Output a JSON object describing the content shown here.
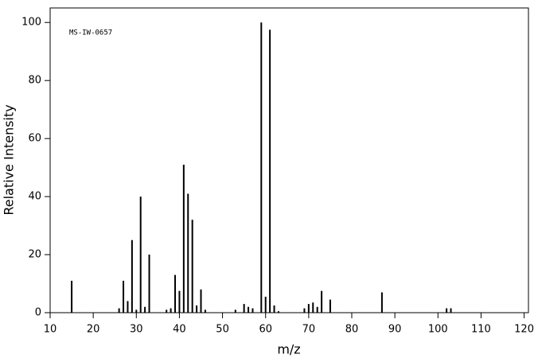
{
  "chart_data": {
    "type": "stem",
    "annotation": "MS-IW-0657",
    "xlabel": "m/z",
    "ylabel": "Relative Intensity",
    "color": "#000000",
    "x": [
      15,
      26,
      27,
      28,
      29,
      30,
      31,
      32,
      33,
      37,
      38,
      39,
      40,
      41,
      42,
      43,
      44,
      45,
      46,
      53,
      55,
      56,
      57,
      59,
      60,
      61,
      62,
      63,
      69,
      70,
      71,
      72,
      73,
      75,
      87,
      102,
      103
    ],
    "values": [
      11,
      1.5,
      11,
      4,
      25,
      1,
      40,
      2,
      20,
      1,
      1.5,
      13,
      7.5,
      51,
      41,
      32,
      2.5,
      8,
      1,
      1,
      3,
      2,
      1.5,
      100,
      5.5,
      97.5,
      2.5,
      0.5,
      1.5,
      3,
      3.5,
      2,
      7.5,
      4.5,
      7,
      1.5,
      1.5
    ],
    "xlim": [
      10,
      121
    ],
    "ylim": [
      0,
      105
    ],
    "xticks": [
      10,
      20,
      30,
      40,
      50,
      60,
      70,
      80,
      90,
      100,
      110,
      120
    ],
    "yticks": [
      0,
      20,
      40,
      60,
      80,
      100
    ]
  }
}
